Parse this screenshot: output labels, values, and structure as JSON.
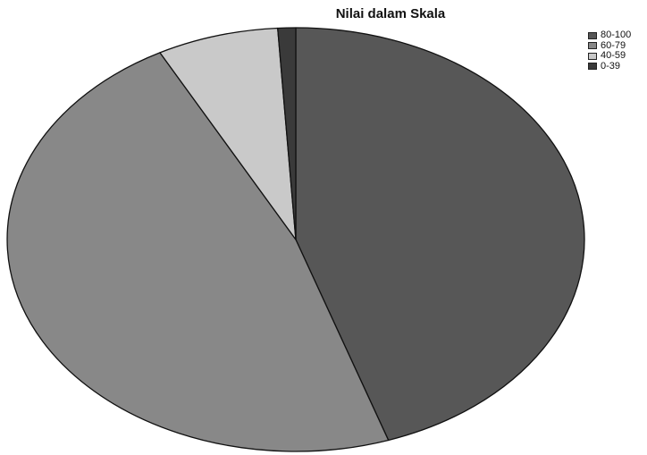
{
  "chart_data": {
    "type": "pie",
    "title": "Nilai dalam Skala",
    "legend_position": "top-right",
    "categories": [
      "80-100",
      "60-79",
      "40-59",
      "0-39"
    ],
    "values": [
      44.8,
      47.4,
      6.8,
      1.0
    ],
    "colors": [
      "#575757",
      "#888888",
      "#c9c9c9",
      "#3a3a3a"
    ],
    "start_angle_deg": 90,
    "direction": "clockwise"
  }
}
